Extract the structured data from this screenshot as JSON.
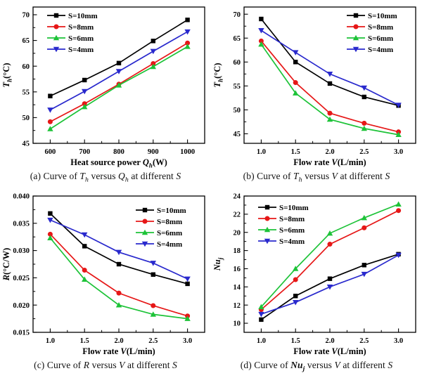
{
  "page": {
    "background": "#ffffff",
    "text_color": "#000000"
  },
  "series_colors": {
    "s10": "#000000",
    "s8": "#e61717",
    "s6": "#1dc338",
    "s4": "#2929cd"
  },
  "chart_data": [
    {
      "id": "a",
      "type": "line",
      "caption": [
        {
          "t": "(a) Curve of "
        },
        {
          "t": "T",
          "i": 1
        },
        {
          "t": "h",
          "i": 1,
          "s": 1
        },
        {
          "t": " versus "
        },
        {
          "t": "Q",
          "i": 1
        },
        {
          "t": "h",
          "i": 1,
          "s": 1
        },
        {
          "t": " at different "
        },
        {
          "t": "S",
          "i": 1
        }
      ],
      "xlabel": [
        {
          "t": "Heat source power "
        },
        {
          "t": "Q",
          "i": 1
        },
        {
          "t": "h",
          "i": 1,
          "s": 1
        },
        {
          "t": "(W)"
        }
      ],
      "ylabel": [
        {
          "t": "T",
          "i": 1
        },
        {
          "t": "h",
          "i": 1,
          "s": 1
        },
        {
          "t": "(°C)"
        }
      ],
      "x": [
        600,
        700,
        800,
        900,
        1000
      ],
      "xlim": [
        550,
        1050
      ],
      "xticks": [
        600,
        700,
        800,
        900,
        1000
      ],
      "xtick_labels": [
        "600",
        "700",
        "800",
        "900",
        "1000"
      ],
      "ylim": [
        45,
        71.5
      ],
      "yticks": [
        45,
        50,
        55,
        60,
        65,
        70
      ],
      "ytick_labels": [
        "45",
        "50",
        "55",
        "60",
        "65",
        "70"
      ],
      "grid": false,
      "legend_position": "top-left",
      "legend_dy": 12,
      "series": [
        {
          "name": "S=10mm",
          "color": "#000000",
          "marker": "square",
          "values": [
            54.2,
            57.3,
            60.6,
            64.9,
            69.0
          ]
        },
        {
          "name": "S=8mm",
          "color": "#e61717",
          "marker": "circle",
          "values": [
            49.2,
            52.7,
            56.5,
            60.5,
            64.5
          ]
        },
        {
          "name": "S=6mm",
          "color": "#1dc338",
          "marker": "triangle-up",
          "values": [
            47.8,
            52.1,
            56.3,
            59.9,
            63.8
          ]
        },
        {
          "name": "S=4mm",
          "color": "#2929cd",
          "marker": "triangle-down",
          "values": [
            51.5,
            55.1,
            59.0,
            62.9,
            66.7
          ]
        }
      ]
    },
    {
      "id": "b",
      "type": "line",
      "caption": [
        {
          "t": "(b) Curve of "
        },
        {
          "t": "T",
          "i": 1
        },
        {
          "t": "h",
          "i": 1,
          "s": 1
        },
        {
          "t": " versus "
        },
        {
          "t": "V",
          "i": 1
        },
        {
          "t": " at different "
        },
        {
          "t": "S",
          "i": 1
        }
      ],
      "xlabel": [
        {
          "t": "Flow rate "
        },
        {
          "t": "V",
          "i": 1
        },
        {
          "t": "(L/min)"
        }
      ],
      "ylabel": [
        {
          "t": "T",
          "i": 1
        },
        {
          "t": "h",
          "i": 1,
          "s": 1
        },
        {
          "t": "(°C)"
        }
      ],
      "x": [
        1.0,
        1.5,
        2.0,
        2.5,
        3.0
      ],
      "xlim": [
        0.75,
        3.25
      ],
      "xticks": [
        1.0,
        1.5,
        2.0,
        2.5,
        3.0
      ],
      "xtick_labels": [
        "1.0",
        "1.5",
        "2.0",
        "2.5",
        "3.0"
      ],
      "ylim": [
        43,
        71.5
      ],
      "yticks": [
        45,
        50,
        55,
        60,
        65,
        70
      ],
      "ytick_labels": [
        "45",
        "50",
        "55",
        "60",
        "65",
        "70"
      ],
      "grid": false,
      "legend_position": "top-right",
      "legend_dy": 12,
      "series": [
        {
          "name": "S=10mm",
          "color": "#000000",
          "marker": "square",
          "values": [
            69.0,
            60.0,
            55.5,
            52.7,
            50.9
          ]
        },
        {
          "name": "S=8mm",
          "color": "#e61717",
          "marker": "circle",
          "values": [
            64.4,
            55.7,
            49.3,
            47.2,
            45.4
          ]
        },
        {
          "name": "S=6mm",
          "color": "#1dc338",
          "marker": "triangle-up",
          "values": [
            63.7,
            53.5,
            48.0,
            46.1,
            44.8
          ]
        },
        {
          "name": "S=4mm",
          "color": "#2929cd",
          "marker": "triangle-down",
          "values": [
            66.6,
            62.0,
            57.5,
            54.6,
            51.0
          ]
        }
      ]
    },
    {
      "id": "c",
      "type": "line",
      "caption": [
        {
          "t": "(c) Curve of "
        },
        {
          "t": "R",
          "i": 1
        },
        {
          "t": " versus "
        },
        {
          "t": "V",
          "i": 1
        },
        {
          "t": " at different "
        },
        {
          "t": "S",
          "i": 1
        }
      ],
      "xlabel": [
        {
          "t": "Flow rate "
        },
        {
          "t": "V",
          "i": 1
        },
        {
          "t": "(L/min)"
        }
      ],
      "ylabel": [
        {
          "t": "R",
          "i": 1
        },
        {
          "t": "(°C/W)"
        }
      ],
      "x": [
        1.0,
        1.5,
        2.0,
        2.5,
        3.0
      ],
      "xlim": [
        0.75,
        3.25
      ],
      "xticks": [
        1.0,
        1.5,
        2.0,
        2.5,
        3.0
      ],
      "xtick_labels": [
        "1.0",
        "1.5",
        "2.0",
        "2.5",
        "3.0"
      ],
      "ylim": [
        0.015,
        0.04
      ],
      "yticks": [
        0.015,
        0.02,
        0.025,
        0.03,
        0.035,
        0.04
      ],
      "ytick_labels": [
        "0.015",
        "0.020",
        "0.025",
        "0.030",
        "0.035",
        "0.040"
      ],
      "grid": false,
      "legend_position": "top-right",
      "legend_dy": 20,
      "series": [
        {
          "name": "S=10mm",
          "color": "#000000",
          "marker": "square",
          "values": [
            0.0368,
            0.0308,
            0.0275,
            0.0256,
            0.0239
          ]
        },
        {
          "name": "S=8mm",
          "color": "#e61717",
          "marker": "circle",
          "values": [
            0.033,
            0.0264,
            0.0222,
            0.0199,
            0.018
          ]
        },
        {
          "name": "S=6mm",
          "color": "#1dc338",
          "marker": "triangle-up",
          "values": [
            0.0323,
            0.0247,
            0.02,
            0.0183,
            0.0175
          ]
        },
        {
          "name": "S=4mm",
          "color": "#2929cd",
          "marker": "triangle-down",
          "values": [
            0.0356,
            0.0329,
            0.0297,
            0.0277,
            0.0248
          ]
        }
      ]
    },
    {
      "id": "d",
      "type": "line",
      "caption": [
        {
          "t": "(d) Curve of  "
        },
        {
          "t": "Nu",
          "i": 1,
          "b": 1
        },
        {
          "t": "j",
          "i": 1,
          "s": 1,
          "b": 1
        },
        {
          "t": "  versus "
        },
        {
          "t": "V",
          "i": 1
        },
        {
          "t": " at different "
        },
        {
          "t": "S",
          "i": 1
        }
      ],
      "xlabel": [
        {
          "t": "Flow rate "
        },
        {
          "t": "V",
          "i": 1
        },
        {
          "t": "(L/min)"
        }
      ],
      "ylabel": [
        {
          "t": "Nu",
          "i": 1
        },
        {
          "t": "j",
          "i": 1,
          "s": 1
        }
      ],
      "x": [
        1.0,
        1.5,
        2.0,
        2.5,
        3.0
      ],
      "xlim": [
        0.75,
        3.25
      ],
      "xticks": [
        1.0,
        1.5,
        2.0,
        2.5,
        3.0
      ],
      "xtick_labels": [
        "1.0",
        "1.5",
        "2.0",
        "2.5",
        "3.0"
      ],
      "ylim": [
        9,
        24
      ],
      "yticks": [
        10,
        12,
        14,
        16,
        18,
        20,
        22,
        24
      ],
      "ytick_labels": [
        "10",
        "12",
        "14",
        "16",
        "18",
        "20",
        "22",
        "24"
      ],
      "grid": false,
      "legend_position": "top-left",
      "legend_dy": 16,
      "series": [
        {
          "name": "S=10mm",
          "color": "#000000",
          "marker": "square",
          "values": [
            10.4,
            13.0,
            14.9,
            16.4,
            17.6
          ]
        },
        {
          "name": "S=8mm",
          "color": "#e61717",
          "marker": "circle",
          "values": [
            11.5,
            14.8,
            18.7,
            20.5,
            22.4
          ]
        },
        {
          "name": "S=6mm",
          "color": "#1dc338",
          "marker": "triangle-up",
          "values": [
            11.8,
            16.0,
            19.9,
            21.6,
            23.1
          ]
        },
        {
          "name": "S=4mm",
          "color": "#2929cd",
          "marker": "triangle-down",
          "values": [
            11.0,
            12.3,
            14.0,
            15.4,
            17.5
          ]
        }
      ]
    }
  ]
}
